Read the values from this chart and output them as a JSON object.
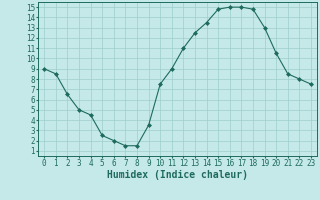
{
  "x": [
    0,
    1,
    2,
    3,
    4,
    5,
    6,
    7,
    8,
    9,
    10,
    11,
    12,
    13,
    14,
    15,
    16,
    17,
    18,
    19,
    20,
    21,
    22,
    23
  ],
  "y": [
    9.0,
    8.5,
    6.5,
    5.0,
    4.5,
    2.5,
    2.0,
    1.5,
    1.5,
    3.5,
    7.5,
    9.0,
    11.0,
    12.5,
    13.5,
    14.8,
    15.0,
    15.0,
    14.8,
    13.0,
    10.5,
    8.5,
    8.0,
    7.5
  ],
  "xlim": [
    -0.5,
    23.5
  ],
  "ylim": [
    0.5,
    15.5
  ],
  "xticks": [
    0,
    1,
    2,
    3,
    4,
    5,
    6,
    7,
    8,
    9,
    10,
    11,
    12,
    13,
    14,
    15,
    16,
    17,
    18,
    19,
    20,
    21,
    22,
    23
  ],
  "yticks": [
    1,
    2,
    3,
    4,
    5,
    6,
    7,
    8,
    9,
    10,
    11,
    12,
    13,
    14,
    15
  ],
  "xlabel": "Humidex (Indice chaleur)",
  "line_color": "#1e6b5e",
  "marker_color": "#1e6b5e",
  "bg_color": "#c5e8e8",
  "grid_color": "#9dcece",
  "tick_label_fontsize": 5.5,
  "xlabel_fontsize": 7.0
}
